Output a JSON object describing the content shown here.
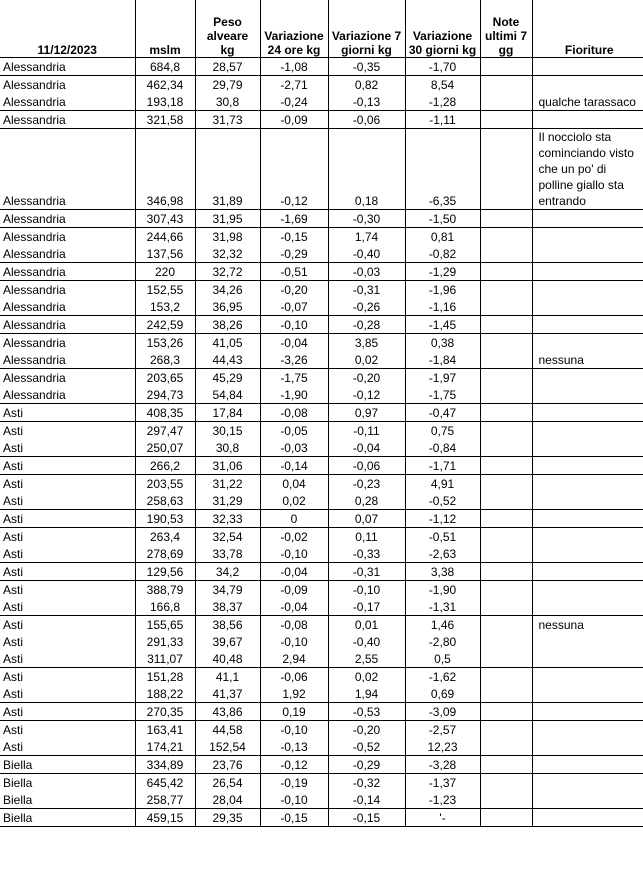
{
  "table": {
    "header": [
      "11/12/2023",
      "mslm",
      "Peso alveare kg",
      "Variazione 24 ore kg",
      "Variazione 7 giorni kg",
      "Variazione 30 giorni kg",
      "Note ultimi 7 gg",
      "Fioriture"
    ],
    "groups": [
      [
        [
          "Alessandria",
          "684,8",
          "28,57",
          "-1,08",
          "-0,35",
          "-1,70",
          null,
          null
        ]
      ],
      [
        [
          "Alessandria",
          "462,34",
          "29,79",
          "-2,71",
          "0,82",
          "8,54",
          null,
          null
        ],
        [
          "Alessandria",
          "193,18",
          "30,8",
          "-0,24",
          "-0,13",
          "-1,28",
          null,
          "qualche tarassaco"
        ]
      ],
      [
        [
          "Alessandria",
          "321,58",
          "31,73",
          "-0,09",
          "-0,06",
          "-1,11",
          null,
          null
        ]
      ],
      [
        [
          "Alessandria",
          "346,98",
          "31,89",
          "-0,12",
          "0,18",
          "-6,35",
          null,
          "Il nocciolo sta cominciando visto che un po' di polline giallo sta entrando"
        ]
      ],
      [
        [
          "Alessandria",
          "307,43",
          "31,95",
          "-1,69",
          "-0,30",
          "-1,50",
          null,
          null
        ]
      ],
      [
        [
          "Alessandria",
          "244,66",
          "31,98",
          "-0,15",
          "1,74",
          "0,81",
          null,
          null
        ],
        [
          "Alessandria",
          "137,56",
          "32,32",
          "-0,29",
          "-0,40",
          "-0,82",
          null,
          null
        ]
      ],
      [
        [
          "Alessandria",
          "220",
          "32,72",
          "-0,51",
          "-0,03",
          "-1,29",
          null,
          null
        ]
      ],
      [
        [
          "Alessandria",
          "152,55",
          "34,26",
          "-0,20",
          "-0,31",
          "-1,96",
          null,
          null
        ],
        [
          "Alessandria",
          "153,2",
          "36,95",
          "-0,07",
          "-0,26",
          "-1,16",
          null,
          null
        ]
      ],
      [
        [
          "Alessandria",
          "242,59",
          "38,26",
          "-0,10",
          "-0,28",
          "-1,45",
          null,
          null
        ]
      ],
      [
        [
          "Alessandria",
          "153,26",
          "41,05",
          "-0,04",
          "3,85",
          "0,38",
          null,
          null
        ],
        [
          "Alessandria",
          "268,3",
          "44,43",
          "-3,26",
          "0,02",
          "-1,84",
          null,
          "nessuna"
        ]
      ],
      [
        [
          "Alessandria",
          "203,65",
          "45,29",
          "-1,75",
          "-0,20",
          "-1,97",
          null,
          null
        ],
        [
          "Alessandria",
          "294,73",
          "54,84",
          "-1,90",
          "-0,12",
          "-1,75",
          null,
          null
        ]
      ],
      [
        [
          "Asti",
          "408,35",
          "17,84",
          "-0,08",
          "0,97",
          "-0,47",
          null,
          null
        ]
      ],
      [
        [
          "Asti",
          "297,47",
          "30,15",
          "-0,05",
          "-0,11",
          "0,75",
          null,
          null
        ],
        [
          "Asti",
          "250,07",
          "30,8",
          "-0,03",
          "-0,04",
          "-0,84",
          null,
          null
        ]
      ],
      [
        [
          "Asti",
          "266,2",
          "31,06",
          "-0,14",
          "-0,06",
          "-1,71",
          null,
          null
        ]
      ],
      [
        [
          "Asti",
          "203,55",
          "31,22",
          "0,04",
          "-0,23",
          "4,91",
          null,
          null
        ],
        [
          "Asti",
          "258,63",
          "31,29",
          "0,02",
          "0,28",
          "-0,52",
          null,
          null
        ]
      ],
      [
        [
          "Asti",
          "190,53",
          "32,33",
          "0",
          "0,07",
          "-1,12",
          null,
          null
        ]
      ],
      [
        [
          "Asti",
          "263,4",
          "32,54",
          "-0,02",
          "0,11",
          "-0,51",
          null,
          null
        ],
        [
          "Asti",
          "278,69",
          "33,78",
          "-0,10",
          "-0,33",
          "-2,63",
          null,
          null
        ]
      ],
      [
        [
          "Asti",
          "129,56",
          "34,2",
          "-0,04",
          "-0,31",
          "3,38",
          null,
          null
        ]
      ],
      [
        [
          "Asti",
          "388,79",
          "34,79",
          "-0,09",
          "-0,10",
          "-1,90",
          null,
          null
        ],
        [
          "Asti",
          "166,8",
          "38,37",
          "-0,04",
          "-0,17",
          "-1,31",
          null,
          null
        ]
      ],
      [
        [
          "Asti",
          "155,65",
          "38,56",
          "-0,08",
          "0,01",
          "1,46",
          null,
          "nessuna"
        ],
        [
          "Asti",
          "291,33",
          "39,67",
          "-0,10",
          "-0,40",
          "-2,80",
          null,
          null
        ],
        [
          "Asti",
          "311,07",
          "40,48",
          "2,94",
          "2,55",
          "0,5",
          null,
          null
        ]
      ],
      [
        [
          "Asti",
          "151,28",
          "41,1",
          "-0,06",
          "0,02",
          "-1,62",
          null,
          null
        ],
        [
          "Asti",
          "188,22",
          "41,37",
          "1,92",
          "1,94",
          "0,69",
          null,
          null
        ]
      ],
      [
        [
          "Asti",
          "270,35",
          "43,86",
          "0,19",
          "-0,53",
          "-3,09",
          null,
          null
        ]
      ],
      [
        [
          "Asti",
          "163,41",
          "44,58",
          "-0,10",
          "-0,20",
          "-2,57",
          null,
          null
        ],
        [
          "Asti",
          "174,21",
          "152,54",
          "-0,13",
          "-0,52",
          "12,23",
          null,
          null
        ]
      ],
      [
        [
          "Biella",
          "334,89",
          "23,76",
          "-0,12",
          "-0,29",
          "-3,28",
          null,
          null
        ]
      ],
      [
        [
          "Biella",
          "645,42",
          "26,54",
          "-0,19",
          "-0,32",
          "-1,37",
          null,
          null
        ],
        [
          "Biella",
          "258,77",
          "28,04",
          "-0,10",
          "-0,14",
          "-1,23",
          null,
          null
        ]
      ],
      [
        [
          "Biella",
          "459,15",
          "29,35",
          "-0,15",
          "-0,15",
          "'-",
          null,
          null
        ]
      ]
    ]
  }
}
